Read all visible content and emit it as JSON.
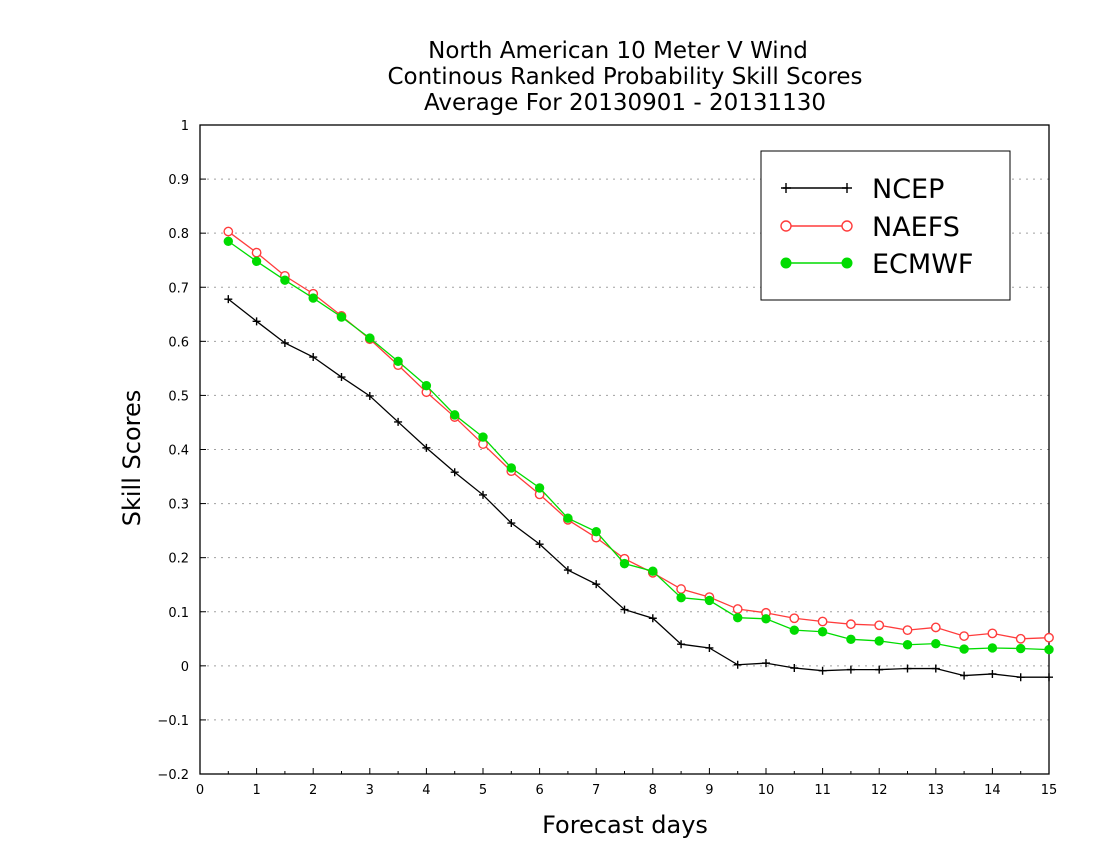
{
  "chart_data": {
    "type": "line",
    "title": [
      "North American 10 Meter V Wind",
      "Continous Ranked Probability Skill Scores",
      "Average For 20130901 - 20131130"
    ],
    "xlabel": "Forecast days",
    "ylabel": "Skill Scores",
    "xlim": [
      0,
      15
    ],
    "ylim": [
      -0.2,
      1
    ],
    "xticks": [
      0,
      1,
      2,
      3,
      4,
      5,
      6,
      7,
      8,
      9,
      10,
      11,
      12,
      13,
      14,
      15
    ],
    "xtick_labels": [
      "0",
      "1",
      "2",
      "3",
      "4",
      "5",
      "6",
      "7",
      "8",
      "9",
      "10",
      "11",
      "12",
      "13",
      "14",
      "15"
    ],
    "yticks": [
      -0.2,
      -0.1,
      0,
      0.1,
      0.2,
      0.3,
      0.4,
      0.5,
      0.6,
      0.7,
      0.8,
      0.9,
      1
    ],
    "ytick_labels": [
      "−0.2",
      "−0.1",
      "0",
      "0.1",
      "0.2",
      "0.3",
      "0.4",
      "0.5",
      "0.6",
      "0.7",
      "0.8",
      "0.9",
      "1"
    ],
    "grid": "horizontal-dotted",
    "legend_position": "top-right",
    "x": [
      0.5,
      1,
      1.5,
      2,
      2.5,
      3,
      3.5,
      4,
      4.5,
      5,
      5.5,
      6,
      6.5,
      7,
      7.5,
      8,
      8.5,
      9,
      9.5,
      10,
      10.5,
      11,
      11.5,
      12,
      12.5,
      13,
      13.5,
      14,
      14.5,
      15
    ],
    "series": [
      {
        "name": "NCEP",
        "color": "#000000",
        "marker": "plus",
        "values": [
          0.678,
          0.637,
          0.597,
          0.571,
          0.534,
          0.499,
          0.451,
          0.403,
          0.358,
          0.316,
          0.264,
          0.225,
          0.177,
          0.151,
          0.104,
          0.088,
          0.04,
          0.033,
          0.002,
          0.005,
          -0.004,
          -0.009,
          -0.007,
          -0.007,
          -0.005,
          -0.005,
          -0.018,
          -0.015,
          -0.021,
          -0.021
        ]
      },
      {
        "name": "NAEFS",
        "color": "#ff3c3c",
        "marker": "open-circle",
        "values": [
          0.803,
          0.764,
          0.721,
          0.688,
          0.647,
          0.604,
          0.556,
          0.506,
          0.46,
          0.41,
          0.36,
          0.317,
          0.27,
          0.237,
          0.198,
          0.172,
          0.142,
          0.127,
          0.105,
          0.098,
          0.088,
          0.082,
          0.077,
          0.075,
          0.066,
          0.071,
          0.055,
          0.06,
          0.05,
          0.052
        ]
      },
      {
        "name": "ECMWF",
        "color": "#00dc00",
        "marker": "filled-circle",
        "values": [
          0.785,
          0.748,
          0.713,
          0.68,
          0.645,
          0.606,
          0.563,
          0.518,
          0.464,
          0.423,
          0.366,
          0.329,
          0.273,
          0.248,
          0.189,
          0.175,
          0.126,
          0.121,
          0.089,
          0.087,
          0.066,
          0.063,
          0.049,
          0.046,
          0.039,
          0.041,
          0.031,
          0.033,
          0.032,
          0.03
        ]
      }
    ]
  }
}
